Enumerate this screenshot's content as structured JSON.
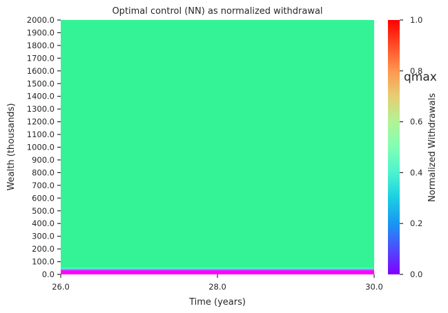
{
  "chart_data": {
    "type": "heatmap",
    "title": "Optimal control (NN) as normalized withdrawal",
    "xlabel": "Time (years)",
    "ylabel": "Wealth (thousands)",
    "xlim": [
      26.0,
      30.0
    ],
    "ylim": [
      0.0,
      2000.0
    ],
    "x_ticks": [
      "26.0",
      "28.0",
      "30.0"
    ],
    "y_ticks": [
      "0.0",
      "100.0",
      "200.0",
      "300.0",
      "400.0",
      "500.0",
      "600.0",
      "700.0",
      "800.0",
      "900.0",
      "1000.0",
      "1100.0",
      "1200.0",
      "1300.0",
      "1400.0",
      "1500.0",
      "1600.0",
      "1700.0",
      "1800.0",
      "1900.0",
      "2000.0"
    ],
    "colormap": "rainbow",
    "color_range": [
      0.0,
      1.0
    ],
    "bands": [
      {
        "wealth_from": 0.0,
        "wealth_to": 30.0,
        "value": 0.0
      },
      {
        "wealth_from": 30.0,
        "wealth_to": 40.0,
        "value": 0.08
      },
      {
        "wealth_from": 40.0,
        "wealth_to": 45.0,
        "value": 0.3
      },
      {
        "wealth_from": 45.0,
        "wealth_to": 50.0,
        "value": 0.45
      },
      {
        "wealth_from": 50.0,
        "wealth_to": 2000.0,
        "value": 0.6
      }
    ],
    "colorbar": {
      "label": "Normalized Withdrawals",
      "ticks": [
        "0.0",
        "0.2",
        "0.4",
        "0.6",
        "0.8",
        "1.0"
      ],
      "annotation": "qmax"
    }
  }
}
